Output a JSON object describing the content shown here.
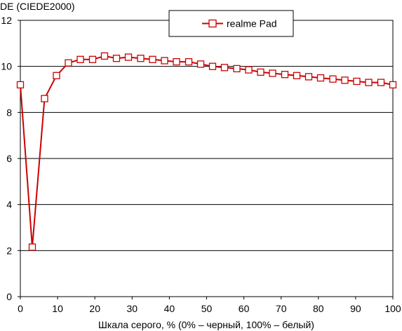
{
  "chart_data": {
    "type": "line",
    "ylabel": "DE (CIEDE2000)",
    "xlabel": "Шкала серого, % (0% – черный, 100% – белый)",
    "xlim": [
      0,
      100
    ],
    "ylim": [
      0,
      12
    ],
    "x_ticks": [
      "0",
      "10",
      "20",
      "30",
      "40",
      "50",
      "60",
      "70",
      "80",
      "90",
      "100"
    ],
    "y_ticks": [
      "0",
      "2",
      "4",
      "6",
      "8",
      "10",
      "12"
    ],
    "grid": "horizontal",
    "legend_position": "top-right",
    "series": [
      {
        "name": "realme Pad",
        "color": "#cc0000",
        "marker": "square",
        "x": [
          0,
          3.2,
          6.5,
          9.7,
          12.9,
          16.1,
          19.4,
          22.6,
          25.8,
          29.0,
          32.3,
          35.5,
          38.7,
          41.9,
          45.2,
          48.4,
          51.6,
          54.8,
          58.1,
          61.3,
          64.5,
          67.7,
          71.0,
          74.2,
          77.4,
          80.6,
          83.9,
          87.1,
          90.3,
          93.5,
          96.8,
          100
        ],
        "y": [
          9.2,
          2.15,
          8.6,
          9.6,
          10.15,
          10.3,
          10.3,
          10.45,
          10.35,
          10.4,
          10.35,
          10.3,
          10.25,
          10.2,
          10.2,
          10.1,
          10.0,
          9.95,
          9.9,
          9.85,
          9.75,
          9.7,
          9.65,
          9.6,
          9.55,
          9.5,
          9.45,
          9.4,
          9.35,
          9.3,
          9.3,
          9.2
        ]
      }
    ]
  }
}
